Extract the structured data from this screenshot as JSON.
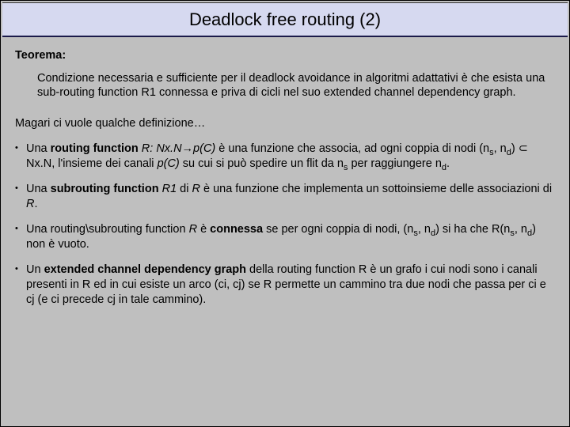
{
  "title": "Deadlock free routing (2)",
  "teorema_label": "Teorema:",
  "teorema_body": "Condizione necessaria e sufficiente per il deadlock avoidance in algoritmi adattativi è che esista una sub-routing function R1 connessa e priva di cicli nel suo extended channel dependency graph.",
  "magari": "Magari ci vuole qualche definizione…",
  "bullet1": {
    "pre": "Una ",
    "bold1": "routing function",
    "ital": " R: Nx.N→p(C)",
    "post1": " è una funzione che associa, ad ogni coppia di nodi (n",
    "s1": "s",
    "post2": ", n",
    "s2": "d",
    "post3": ") ⊂ Nx.N, l'insieme dei canali ",
    "ital2": "p(C)",
    "post4": " su cui si può spedire un flit da n",
    "s3": "s",
    "post5": " per raggiungere n",
    "s4": "d",
    "post6": "."
  },
  "bullet2": {
    "pre": "Una ",
    "bold": "subrouting function",
    "ital": " R1",
    "mid": " di ",
    "ital2": "R",
    "post": " è una funzione che implementa un sottoinsieme delle associazioni di ",
    "ital3": "R",
    "end": "."
  },
  "bullet3": {
    "pre": "Una routing\\subrouting function ",
    "ital": "R",
    "mid": " è ",
    "bold": "connessa",
    "post1": " se per ogni coppia di nodi, (n",
    "s1": "s",
    "post2": ", n",
    "s2": "d",
    "post3": ") si ha che R(n",
    "s3": "s",
    "post4": ", n",
    "s4": "d",
    "post5": ") non è vuoto."
  },
  "bullet4": {
    "pre": "Un ",
    "bold": "extended channel dependency graph",
    "post": " della routing function R è un grafo i cui nodi sono i canali presenti in R ed in cui esiste un arco (ci, cj) se R permette un cammino tra due nodi che passa per ci e cj (e ci precede cj in tale cammino)."
  },
  "colors": {
    "title_bg": "#d6d9f0",
    "body_bg": "#bfbfbf",
    "title_border": "#1a1a4a"
  }
}
